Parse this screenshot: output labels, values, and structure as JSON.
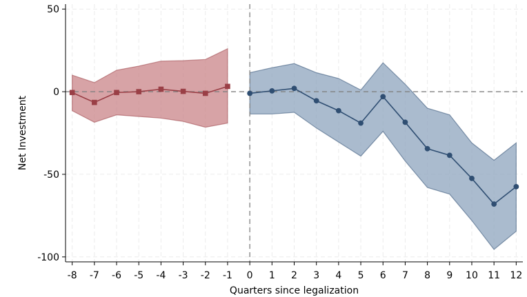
{
  "chart_data": {
    "type": "line",
    "xlabel": "Quarters since legalization",
    "ylabel": "Net Investment",
    "xlim": [
      -8.3,
      12.3
    ],
    "ylim": [
      -103,
      53
    ],
    "xticks": [
      -8,
      -7,
      -6,
      -5,
      -4,
      -3,
      -2,
      -1,
      0,
      1,
      2,
      3,
      4,
      5,
      6,
      7,
      8,
      9,
      10,
      11,
      12
    ],
    "yticks": [
      50,
      0,
      -50,
      -100
    ],
    "grid": true,
    "reference_lines": {
      "y": 0,
      "x": 0
    },
    "series": [
      {
        "marker": "square",
        "color": "#9a3f46",
        "band_color": "#c98488",
        "x": [
          -8,
          -7,
          -6,
          -5,
          -4,
          -3,
          -2,
          -1
        ],
        "values": [
          -0.5,
          -6.5,
          -0.5,
          0,
          1.5,
          0.2,
          -1,
          3.2
        ],
        "upper": [
          10,
          5.5,
          13,
          15.5,
          18.5,
          18.8,
          19.5,
          26
        ],
        "lower": [
          -11.5,
          -18.5,
          -14,
          -15,
          -16,
          -18,
          -21.5,
          -19
        ]
      },
      {
        "marker": "circle",
        "color": "#2f4e72",
        "band_color": "#8da4bd",
        "x": [
          0,
          1,
          2,
          3,
          4,
          5,
          6,
          7,
          8,
          9,
          10,
          11,
          12
        ],
        "values": [
          -1,
          0.5,
          2,
          -5.5,
          -11.5,
          -19,
          -3,
          -18.5,
          -34.5,
          -38.5,
          -52.5,
          -68,
          -57.5
        ],
        "upper": [
          11.5,
          14.5,
          17,
          11.5,
          8,
          1,
          17.5,
          4.5,
          -10,
          -14,
          -31,
          -41.5,
          -31
        ],
        "lower": [
          -13.5,
          -13.5,
          -12.5,
          -22,
          -30.5,
          -39,
          -24,
          -42,
          -58,
          -62,
          -78,
          -95.5,
          -84.5
        ]
      }
    ]
  }
}
